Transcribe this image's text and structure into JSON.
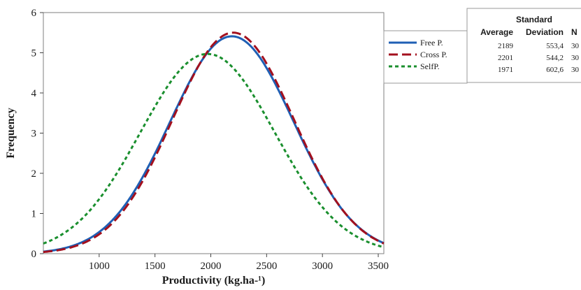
{
  "chart_data": {
    "type": "line",
    "title": "",
    "xlabel": "Productivity (kg.ha-¹)",
    "ylabel": "Frequency",
    "xlim": [
      500,
      3550
    ],
    "ylim": [
      0,
      6
    ],
    "x_ticks": [
      "1000",
      "1500",
      "2000",
      "2500",
      "3000",
      "3500"
    ],
    "y_ticks": [
      "0",
      "1",
      "2",
      "3",
      "4",
      "5",
      "6"
    ],
    "grid": false,
    "legend_position": "right",
    "series": [
      {
        "name": "Free P.",
        "mean": 2189,
        "sd": 553.4,
        "peak": 5.41,
        "color": "#1f5fb4",
        "dash": "solid"
      },
      {
        "name": "Cross P.",
        "mean": 2201,
        "sd": 544.2,
        "peak": 5.5,
        "color": "#a3101e",
        "dash": "long-dash"
      },
      {
        "name": "Self P.",
        "mean": 1971,
        "sd": 602.6,
        "peak": 4.97,
        "color": "#1a8f2e",
        "dash": "short-dash"
      }
    ],
    "legend": [
      {
        "label": "Free P.",
        "color": "#1f5fb4",
        "dash": "solid"
      },
      {
        "label": "Cross P.",
        "color": "#a3101e",
        "dash": "long-dash"
      },
      {
        "label": "SelfP.",
        "color": "#1a8f2e",
        "dash": "short-dash"
      }
    ],
    "stats_table": {
      "header_top": "Standard",
      "headers": [
        "Average",
        "Deviation",
        "N"
      ],
      "rows": [
        [
          "2189",
          "553,4",
          "30"
        ],
        [
          "2201",
          "544,2",
          "30"
        ],
        [
          "1971",
          "602,6",
          "30"
        ]
      ]
    }
  }
}
